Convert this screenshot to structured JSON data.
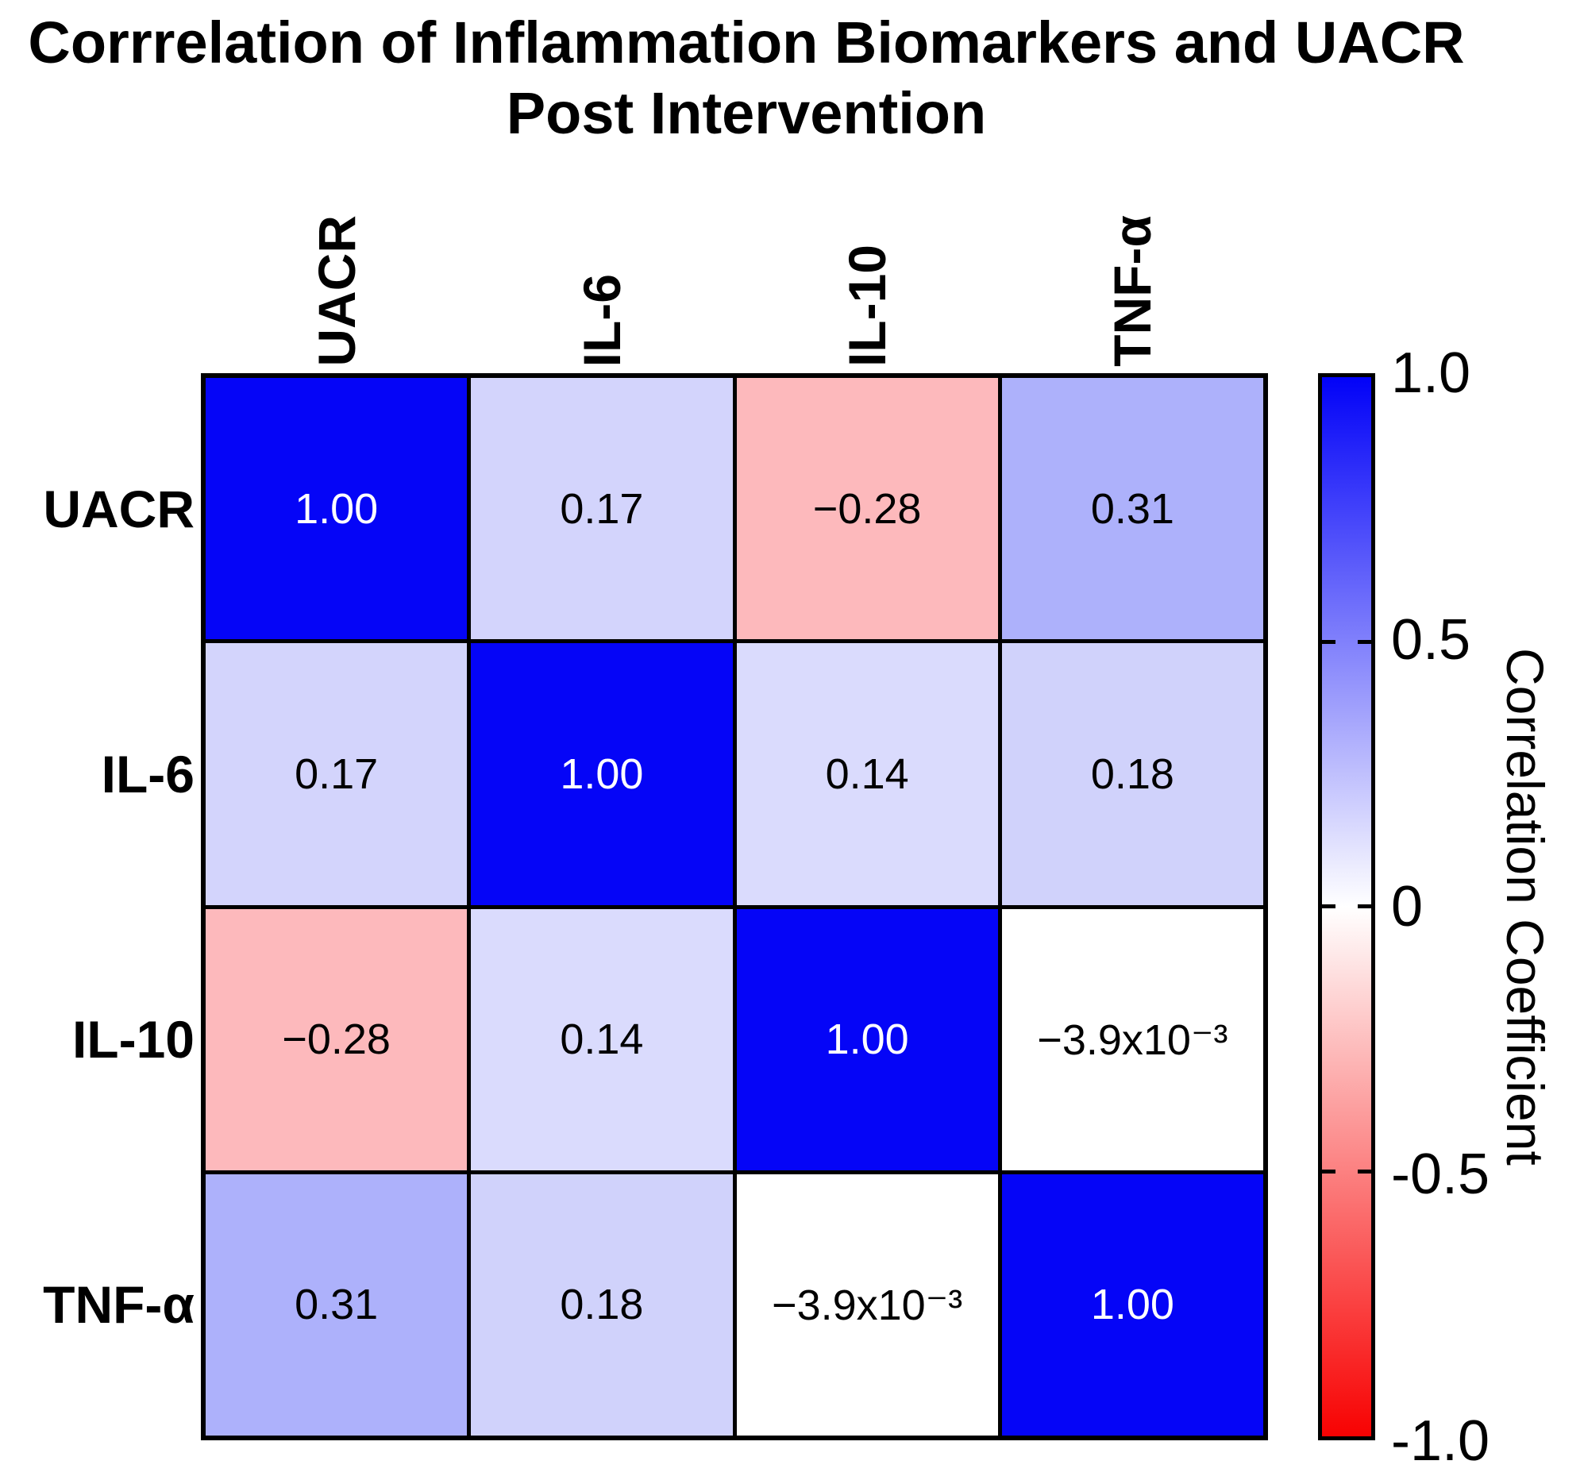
{
  "title": {
    "line1": "Corrrelation of Inflammation Biomarkers and UACR",
    "line2": "Post Intervention"
  },
  "chart_data": {
    "type": "heatmap",
    "title": "Corrrelation of Inflammation Biomarkers and UACR Post Intervention",
    "row_labels": [
      "UACR",
      "IL-6",
      "IL-10",
      "TNF-α"
    ],
    "col_labels": [
      "UACR",
      "IL-6",
      "IL-10",
      "TNF-α"
    ],
    "matrix": [
      [
        1.0,
        0.17,
        -0.28,
        0.31
      ],
      [
        0.17,
        1.0,
        0.14,
        0.18
      ],
      [
        -0.28,
        0.14,
        1.0,
        -0.0039
      ],
      [
        0.31,
        0.18,
        -0.0039,
        1.0
      ]
    ],
    "value_range": [
      -1.0,
      1.0
    ],
    "legend_position": "right",
    "cells": [
      {
        "label": "1.00",
        "bg": "#0505f7",
        "fg": "#ffffff"
      },
      {
        "label": "0.17",
        "bg": "#d3d4fc",
        "fg": "#000000"
      },
      {
        "label": "−0.28",
        "bg": "#fdb9bc",
        "fg": "#000000"
      },
      {
        "label": "0.31",
        "bg": "#adb1fb",
        "fg": "#000000"
      },
      {
        "label": "0.17",
        "bg": "#d3d4fc",
        "fg": "#000000"
      },
      {
        "label": "1.00",
        "bg": "#0505f7",
        "fg": "#ffffff"
      },
      {
        "label": "0.14",
        "bg": "#dadbfd",
        "fg": "#000000"
      },
      {
        "label": "0.18",
        "bg": "#d0d2fb",
        "fg": "#000000"
      },
      {
        "label": "−0.28",
        "bg": "#fdb9bc",
        "fg": "#000000"
      },
      {
        "label": "0.14",
        "bg": "#dadbfd",
        "fg": "#000000"
      },
      {
        "label": "1.00",
        "bg": "#0505f7",
        "fg": "#ffffff"
      },
      {
        "label": "−3.9x10⁻³",
        "bg": "#ffffff",
        "fg": "#000000"
      },
      {
        "label": "0.31",
        "bg": "#adb1fb",
        "fg": "#000000"
      },
      {
        "label": "0.18",
        "bg": "#d0d2fb",
        "fg": "#000000"
      },
      {
        "label": "−3.9x10⁻³",
        "bg": "#ffffff",
        "fg": "#000000"
      },
      {
        "label": "1.00",
        "bg": "#0505f7",
        "fg": "#ffffff"
      }
    ],
    "colorbar": {
      "label": "Correlation Coefficient",
      "ticks": [
        "1.0",
        "0.5",
        "0",
        "-0.5",
        "-1.0"
      ],
      "min": -1.0,
      "max": 1.0,
      "colors": {
        "top": "#0202f8",
        "middle": "#ffffff",
        "bottom": "#f80202"
      }
    }
  }
}
